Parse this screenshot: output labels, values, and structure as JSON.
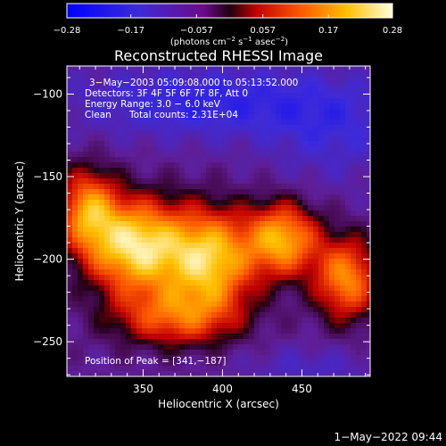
{
  "chart_data": {
    "type": "heatmap",
    "title": "Reconstructed RHESSI Image",
    "xlabel": "Heliocentric X (arcsec)",
    "ylabel": "Heliocentric Y (arcsec)",
    "xlim": [
      302,
      493
    ],
    "ylim": [
      -271,
      -83
    ],
    "x_ticks": [
      350,
      400,
      450
    ],
    "y_ticks": [
      -100,
      -150,
      -200,
      -250
    ],
    "colorbar": {
      "min": -0.28,
      "max": 0.28,
      "ticks": [
        -0.28,
        -0.17,
        -0.057,
        0.057,
        0.17,
        0.28
      ],
      "tick_labels": [
        "−0.28",
        "−0.17",
        "−0.057",
        "0.057",
        "0.17",
        "0.28"
      ],
      "unit_pre": "(photons cm",
      "unit_exp1": "−2",
      "unit_mid": " s",
      "unit_exp2": "−1",
      "unit_mid2": " asec",
      "unit_exp3": "−2",
      "unit_post": ")"
    },
    "annotations": {
      "time_range": "3−May−2003 05:09:08.000 to 05:13:52.000",
      "detectors": "Detectors: 3F 4F 5F 6F 7F 8F, Att 0",
      "energy": "Energy Range: 3.0 − 6.0 keV",
      "algorithm": "Clean",
      "total_counts": "Total counts: 2.31E+04",
      "peak": "Position of Peak = [341,−187]"
    },
    "peak": {
      "x": 341,
      "y": -187
    },
    "grid": false
  },
  "footer": {
    "timestamp": "1−May−2022 09:44"
  }
}
